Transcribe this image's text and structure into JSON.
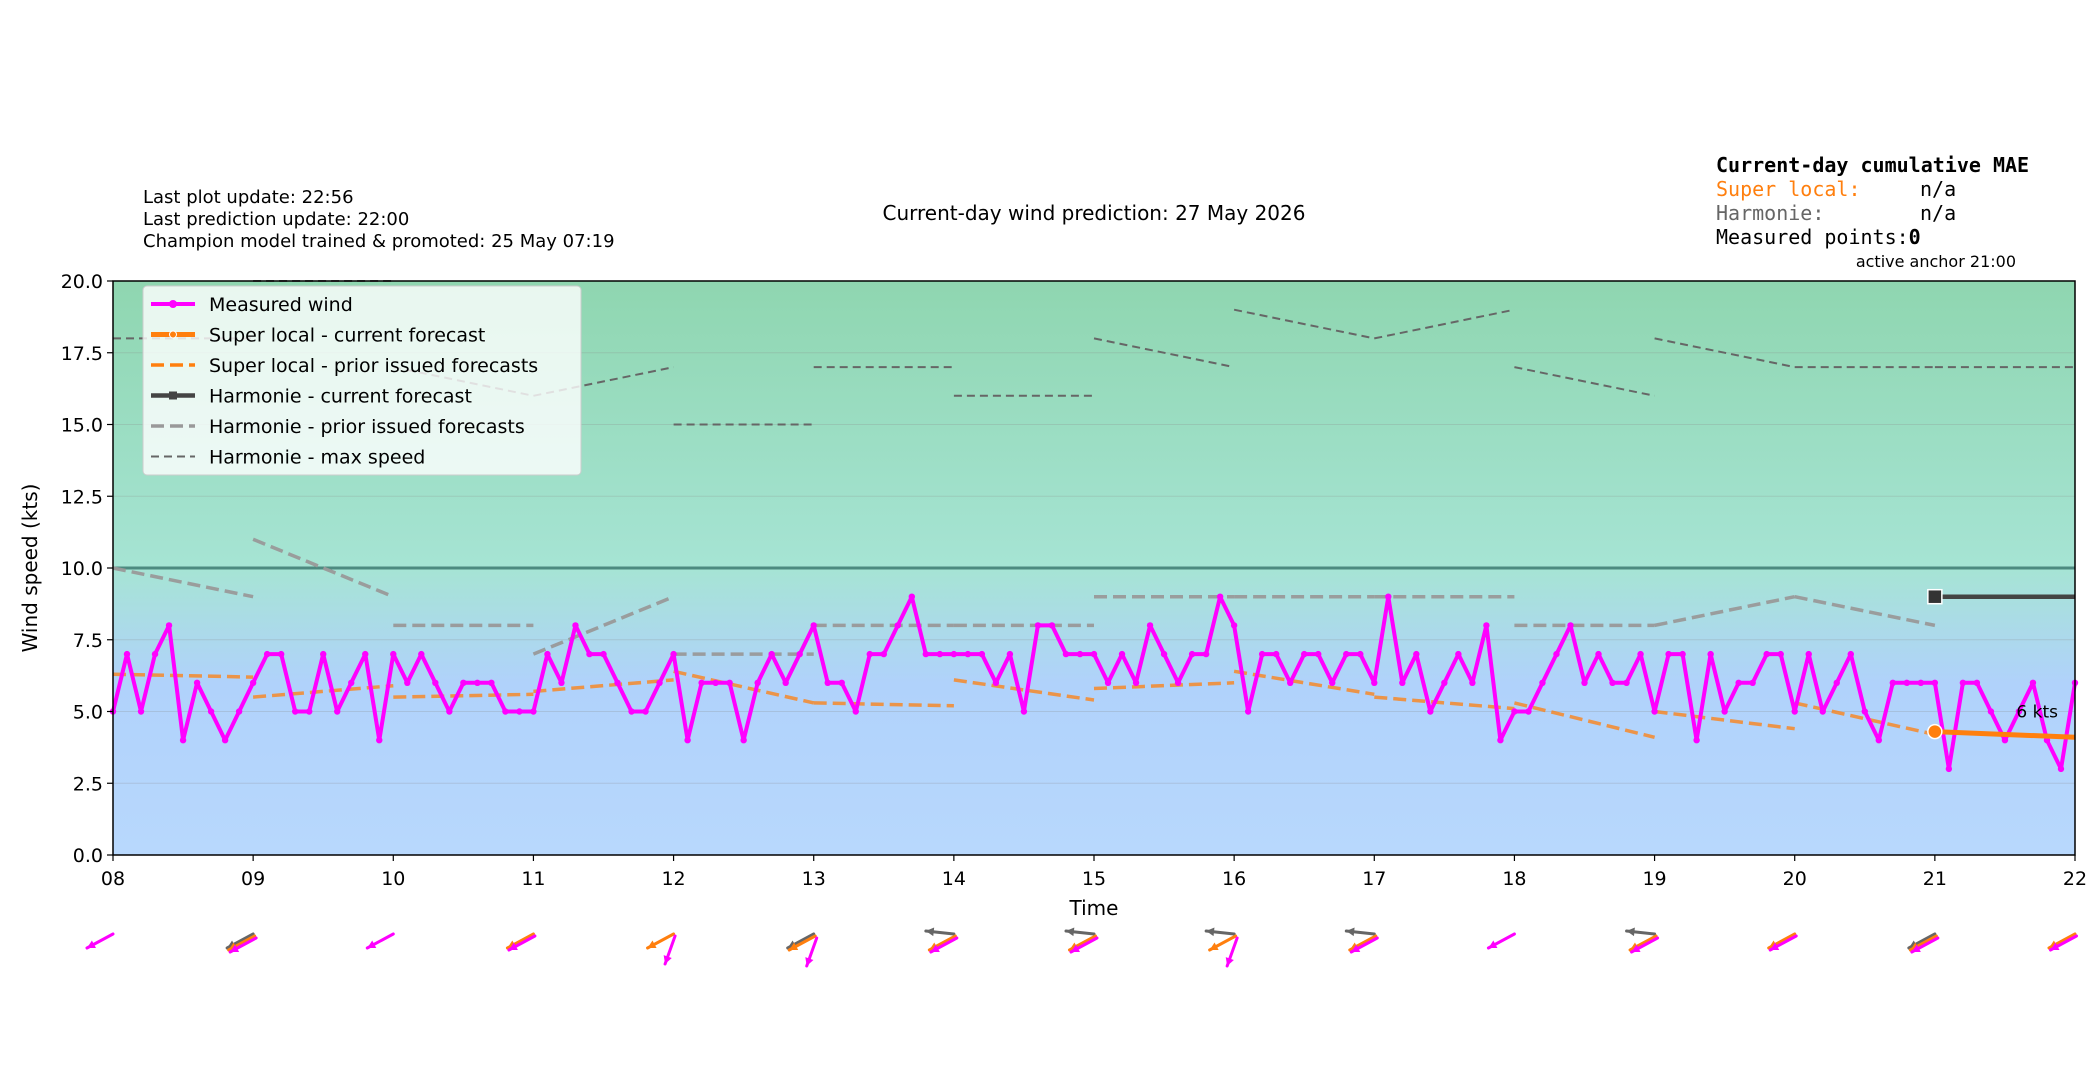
{
  "header": {
    "last_plot_update": "Last plot update: 22:56",
    "last_prediction_update": "Last prediction update: 22:00",
    "champion_model": "Champion model trained & promoted: 25 May 07:19",
    "title": "Current-day wind prediction: 27 May 2026"
  },
  "mae_box": {
    "title": "Current-day cumulative MAE",
    "super_local_label": "Super local:",
    "super_local_value": "n/a",
    "harmonie_label": "Harmonie:",
    "harmonie_value": "n/a",
    "measured_points_label": "Measured points:",
    "measured_points_value": "0",
    "active_anchor": "active anchor 21:00"
  },
  "colors": {
    "measured": "#ff00ff",
    "super_local": "#ff7f0e",
    "harmonie_current": "#444444",
    "harmonie_prior": "#999999",
    "harmonie_max": "#666666",
    "threshold_line": "#4d8a80",
    "band_top": "#8fd6b0",
    "band_mid": "#a6e4d4",
    "band_bottom": "#b8d8fd"
  },
  "annotation": {
    "kts_label": "6 kts"
  },
  "chart_data": {
    "type": "line",
    "xlabel": "Time",
    "ylabel": "Wind speed (kts)",
    "xlim": [
      8,
      22
    ],
    "ylim": [
      0,
      20
    ],
    "x_ticks": [
      "08",
      "09",
      "10",
      "11",
      "12",
      "13",
      "14",
      "15",
      "16",
      "17",
      "18",
      "19",
      "20",
      "21",
      "22"
    ],
    "y_ticks": [
      "0.0",
      "2.5",
      "5.0",
      "7.5",
      "10.0",
      "12.5",
      "15.0",
      "17.5",
      "20.0"
    ],
    "threshold": 10,
    "legend_placement": "top-left",
    "legend": [
      "Measured wind",
      "Super local - current forecast",
      "Super local - prior issued forecasts",
      "Harmonie - current forecast",
      "Harmonie - prior issued forecasts",
      "Harmonie - max speed"
    ],
    "measured": {
      "x": [
        8.0,
        8.1,
        8.2,
        8.3,
        8.4,
        8.5,
        8.6,
        8.7,
        8.8,
        8.9,
        9.0,
        9.1,
        9.2,
        9.3,
        9.4,
        9.5,
        9.6,
        9.7,
        9.8,
        9.9,
        10.0,
        10.1,
        10.2,
        10.3,
        10.4,
        10.5,
        10.6,
        10.7,
        10.8,
        10.9,
        11.0,
        11.1,
        11.2,
        11.3,
        11.4,
        11.5,
        11.6,
        11.7,
        11.8,
        11.9,
        12.0,
        12.1,
        12.2,
        12.3,
        12.4,
        12.5,
        12.6,
        12.7,
        12.8,
        12.9,
        13.0,
        13.1,
        13.2,
        13.3,
        13.4,
        13.5,
        13.6,
        13.7,
        13.8,
        13.9,
        14.0,
        14.1,
        14.2,
        14.3,
        14.4,
        14.5,
        14.6,
        14.7,
        14.8,
        14.9,
        15.0,
        15.1,
        15.2,
        15.3,
        15.4,
        15.5,
        15.6,
        15.7,
        15.8,
        15.9,
        16.0,
        16.1,
        16.2,
        16.3,
        16.4,
        16.5,
        16.6,
        16.7,
        16.8,
        16.9,
        17.0,
        17.1,
        17.2,
        17.3,
        17.4,
        17.5,
        17.6,
        17.7,
        17.8,
        17.9,
        18.0,
        18.1,
        18.2,
        18.3,
        18.4,
        18.5,
        18.6,
        18.7,
        18.8,
        18.9,
        19.0,
        19.1,
        19.2,
        19.3,
        19.4,
        19.5,
        19.6,
        19.7,
        19.8,
        19.9,
        20.0,
        20.1,
        20.2,
        20.3,
        20.4,
        20.5,
        20.6,
        20.7,
        20.8,
        20.9,
        21.0,
        21.1,
        21.2,
        21.3,
        21.4,
        21.5,
        21.6,
        21.7,
        21.8,
        21.9,
        22.0
      ],
      "y": [
        5,
        7,
        5,
        7,
        8,
        4,
        6,
        5,
        4,
        5,
        6,
        7,
        7,
        5,
        5,
        7,
        5,
        6,
        7,
        4,
        7,
        6,
        7,
        6,
        5,
        6,
        6,
        6,
        5,
        5,
        5,
        7,
        6,
        8,
        7,
        7,
        6,
        5,
        5,
        6,
        7,
        4,
        6,
        6,
        6,
        4,
        6,
        7,
        6,
        7,
        8,
        6,
        6,
        5,
        7,
        7,
        8,
        9,
        7,
        7,
        7,
        7,
        7,
        6,
        7,
        5,
        8,
        8,
        7,
        7,
        7,
        6,
        7,
        6,
        8,
        7,
        6,
        7,
        7,
        9,
        8,
        5,
        7,
        7,
        6,
        7,
        7,
        6,
        7,
        7,
        6,
        9,
        6,
        7,
        5,
        6,
        7,
        6,
        8,
        4,
        5,
        5,
        6,
        7,
        8,
        6,
        7,
        6,
        6,
        7,
        5,
        7,
        7,
        4,
        7,
        5,
        6,
        6,
        7,
        7,
        5,
        7,
        5,
        6,
        7,
        5,
        4,
        6,
        6,
        6,
        6,
        3,
        6,
        6,
        5,
        4,
        5,
        6,
        4,
        3,
        6
      ]
    },
    "super_local_current": {
      "x": [
        21,
        22
      ],
      "y": [
        4.3,
        4.1
      ]
    },
    "super_local_prior": [
      {
        "x": [
          8,
          9
        ],
        "y": [
          6.3,
          6.2
        ]
      },
      {
        "x": [
          9,
          10
        ],
        "y": [
          5.5,
          5.9
        ]
      },
      {
        "x": [
          10,
          11
        ],
        "y": [
          5.5,
          5.6
        ]
      },
      {
        "x": [
          11,
          12
        ],
        "y": [
          5.7,
          6.1
        ]
      },
      {
        "x": [
          12,
          13
        ],
        "y": [
          6.4,
          5.3
        ]
      },
      {
        "x": [
          13,
          14
        ],
        "y": [
          5.3,
          5.2
        ]
      },
      {
        "x": [
          14,
          15
        ],
        "y": [
          6.1,
          5.4
        ]
      },
      {
        "x": [
          15,
          16
        ],
        "y": [
          5.8,
          6.0
        ]
      },
      {
        "x": [
          16,
          17
        ],
        "y": [
          6.4,
          5.6
        ]
      },
      {
        "x": [
          17,
          18
        ],
        "y": [
          5.5,
          5.1
        ]
      },
      {
        "x": [
          18,
          19
        ],
        "y": [
          5.3,
          4.1
        ]
      },
      {
        "x": [
          19,
          20
        ],
        "y": [
          5.0,
          4.4
        ]
      },
      {
        "x": [
          20,
          21
        ],
        "y": [
          5.3,
          4.2
        ]
      }
    ],
    "harmonie_current": {
      "x": [
        21,
        22
      ],
      "y": [
        9,
        9
      ]
    },
    "harmonie_prior": [
      {
        "x": [
          8,
          9
        ],
        "y": [
          10,
          9
        ]
      },
      {
        "x": [
          9,
          10
        ],
        "y": [
          11,
          9
        ]
      },
      {
        "x": [
          10,
          11
        ],
        "y": [
          8,
          8
        ]
      },
      {
        "x": [
          11,
          12
        ],
        "y": [
          7,
          9
        ]
      },
      {
        "x": [
          12,
          13
        ],
        "y": [
          7,
          7
        ]
      },
      {
        "x": [
          13,
          14
        ],
        "y": [
          8,
          8
        ]
      },
      {
        "x": [
          14,
          15
        ],
        "y": [
          8,
          8
        ]
      },
      {
        "x": [
          15,
          16
        ],
        "y": [
          9,
          9
        ]
      },
      {
        "x": [
          16,
          17
        ],
        "y": [
          9,
          9
        ]
      },
      {
        "x": [
          17,
          18
        ],
        "y": [
          9,
          9
        ]
      },
      {
        "x": [
          18,
          19
        ],
        "y": [
          8,
          8
        ]
      },
      {
        "x": [
          19,
          20
        ],
        "y": [
          8,
          9
        ]
      },
      {
        "x": [
          20,
          21
        ],
        "y": [
          9,
          8
        ]
      }
    ],
    "harmonie_max": [
      {
        "x": [
          8,
          9
        ],
        "y": [
          18,
          18
        ]
      },
      {
        "x": [
          9,
          10
        ],
        "y": [
          20,
          20
        ]
      },
      {
        "x": [
          10,
          11
        ],
        "y": [
          17,
          16
        ]
      },
      {
        "x": [
          11,
          12
        ],
        "y": [
          16,
          17
        ]
      },
      {
        "x": [
          12,
          13
        ],
        "y": [
          15,
          15
        ]
      },
      {
        "x": [
          13,
          14
        ],
        "y": [
          17,
          17
        ]
      },
      {
        "x": [
          14,
          15
        ],
        "y": [
          16,
          16
        ]
      },
      {
        "x": [
          15,
          16
        ],
        "y": [
          18,
          17
        ]
      },
      {
        "x": [
          16,
          17
        ],
        "y": [
          19,
          18
        ]
      },
      {
        "x": [
          17,
          18
        ],
        "y": [
          18,
          19
        ]
      },
      {
        "x": [
          18,
          19
        ],
        "y": [
          17,
          16
        ]
      },
      {
        "x": [
          19,
          20
        ],
        "y": [
          18,
          17
        ]
      },
      {
        "x": [
          20,
          21
        ],
        "y": [
          17,
          17
        ]
      },
      {
        "x": [
          21,
          22
        ],
        "y": [
          17,
          17
        ]
      }
    ],
    "anchor": {
      "super_local": {
        "x": 21,
        "y": 4.3
      },
      "harmonie": {
        "x": 21,
        "y": 9
      }
    },
    "direction_arrows": [
      {
        "x": 8,
        "arrows": [
          {
            "series": "measured",
            "dir": "sw"
          }
        ]
      },
      {
        "x": 9,
        "arrows": [
          {
            "series": "harmonie",
            "dir": "sw"
          },
          {
            "series": "super_local",
            "dir": "sw"
          },
          {
            "series": "measured",
            "dir": "sw"
          }
        ]
      },
      {
        "x": 10,
        "arrows": [
          {
            "series": "measured",
            "dir": "sw"
          }
        ]
      },
      {
        "x": 11,
        "arrows": [
          {
            "series": "super_local",
            "dir": "sw"
          },
          {
            "series": "measured",
            "dir": "sw"
          }
        ]
      },
      {
        "x": 12,
        "arrows": [
          {
            "series": "super_local",
            "dir": "sw"
          },
          {
            "series": "measured",
            "dir": "s"
          }
        ]
      },
      {
        "x": 13,
        "arrows": [
          {
            "series": "harmonie",
            "dir": "sw"
          },
          {
            "series": "super_local",
            "dir": "sw"
          },
          {
            "series": "measured",
            "dir": "s"
          }
        ]
      },
      {
        "x": 14,
        "arrows": [
          {
            "series": "harmonie",
            "dir": "w"
          },
          {
            "series": "super_local",
            "dir": "sw"
          },
          {
            "series": "measured",
            "dir": "sw"
          }
        ]
      },
      {
        "x": 15,
        "arrows": [
          {
            "series": "harmonie",
            "dir": "w"
          },
          {
            "series": "super_local",
            "dir": "sw"
          },
          {
            "series": "measured",
            "dir": "sw"
          }
        ]
      },
      {
        "x": 16,
        "arrows": [
          {
            "series": "harmonie",
            "dir": "w"
          },
          {
            "series": "super_local",
            "dir": "sw"
          },
          {
            "series": "measured",
            "dir": "s"
          }
        ]
      },
      {
        "x": 17,
        "arrows": [
          {
            "series": "harmonie",
            "dir": "w"
          },
          {
            "series": "super_local",
            "dir": "sw"
          },
          {
            "series": "measured",
            "dir": "sw"
          }
        ]
      },
      {
        "x": 18,
        "arrows": [
          {
            "series": "measured",
            "dir": "sw"
          }
        ]
      },
      {
        "x": 19,
        "arrows": [
          {
            "series": "harmonie",
            "dir": "w"
          },
          {
            "series": "super_local",
            "dir": "sw"
          },
          {
            "series": "measured",
            "dir": "sw"
          }
        ]
      },
      {
        "x": 20,
        "arrows": [
          {
            "series": "super_local",
            "dir": "sw"
          },
          {
            "series": "measured",
            "dir": "sw"
          }
        ]
      },
      {
        "x": 21,
        "arrows": [
          {
            "series": "harmonie",
            "dir": "sw"
          },
          {
            "series": "super_local",
            "dir": "sw"
          },
          {
            "series": "measured",
            "dir": "sw"
          }
        ]
      },
      {
        "x": 22,
        "arrows": [
          {
            "series": "super_local",
            "dir": "sw"
          },
          {
            "series": "measured",
            "dir": "sw"
          }
        ]
      }
    ]
  }
}
